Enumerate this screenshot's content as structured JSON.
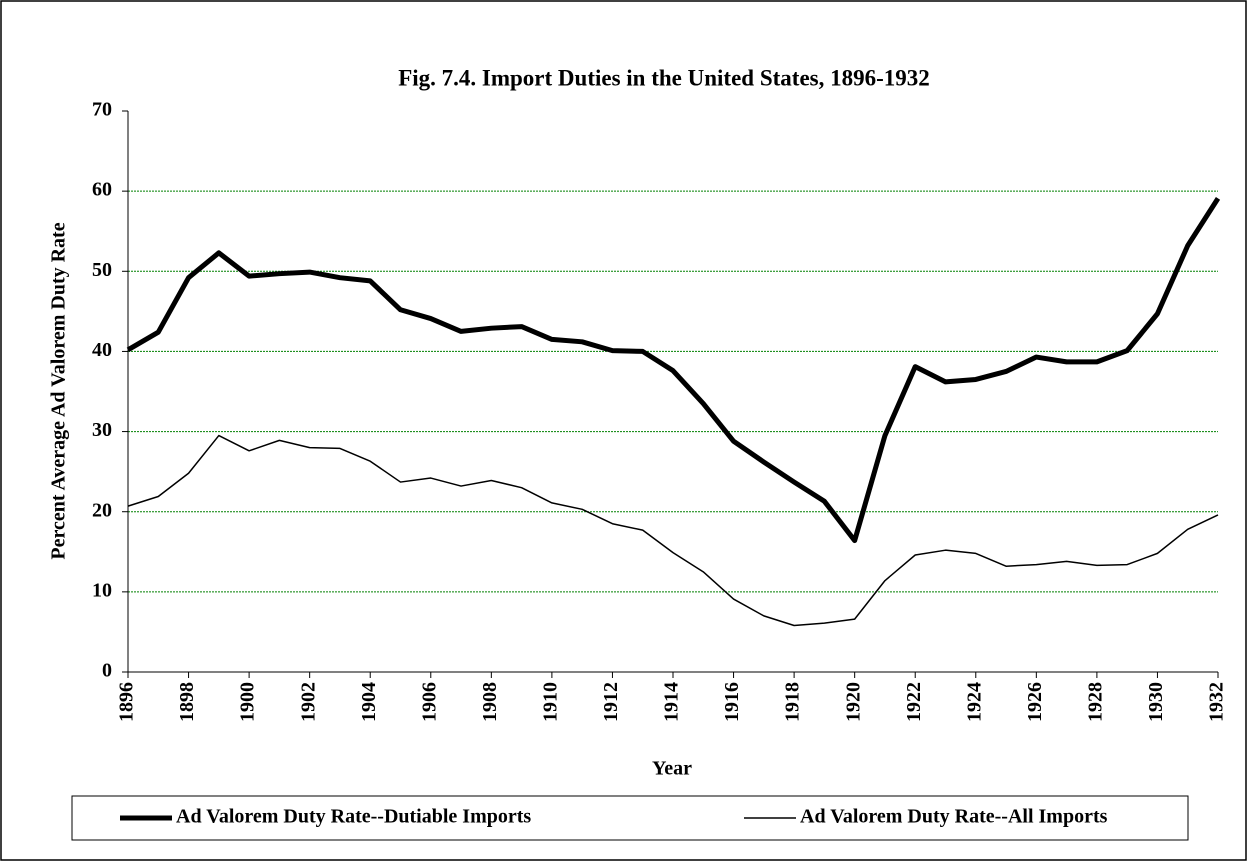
{
  "chart_data": {
    "type": "line",
    "title": "Fig. 7.4. Import Duties in the United States, 1896-1932",
    "x_label": "Year",
    "y_label": "Percent Average Ad Valorem Duty Rate",
    "x": [
      1896,
      1897,
      1898,
      1899,
      1900,
      1901,
      1902,
      1903,
      1904,
      1905,
      1906,
      1907,
      1908,
      1909,
      1910,
      1911,
      1912,
      1913,
      1914,
      1915,
      1916,
      1917,
      1918,
      1919,
      1920,
      1921,
      1922,
      1923,
      1924,
      1925,
      1926,
      1927,
      1928,
      1929,
      1930,
      1931,
      1932
    ],
    "series": [
      {
        "name": "Ad Valorem Duty Rate--Dutiable Imports",
        "color": "#000000",
        "values": [
          40.2,
          42.4,
          49.2,
          52.3,
          49.4,
          49.7,
          49.9,
          49.2,
          48.8,
          45.2,
          44.1,
          42.5,
          42.9,
          43.1,
          41.5,
          41.2,
          40.1,
          40.0,
          37.6,
          33.5,
          28.8,
          26.2,
          23.7,
          21.3,
          16.4,
          29.5,
          38.1,
          36.2,
          36.5,
          37.5,
          39.3,
          38.7,
          38.7,
          40.1,
          44.7,
          53.2,
          59.1
        ]
      },
      {
        "name": "Ad Valorem Duty Rate--All Imports",
        "color": "#000000",
        "values": [
          20.7,
          21.9,
          24.8,
          29.5,
          27.6,
          28.9,
          28.0,
          27.9,
          26.3,
          23.7,
          24.2,
          23.2,
          23.9,
          23.0,
          21.1,
          20.3,
          18.5,
          17.7,
          14.9,
          12.5,
          9.1,
          7.0,
          5.8,
          6.1,
          6.6,
          11.4,
          14.6,
          15.2,
          14.8,
          13.2,
          13.4,
          13.8,
          13.3,
          13.4,
          14.8,
          17.8,
          19.6
        ]
      }
    ],
    "xlim": [
      1896,
      1932
    ],
    "xticks": [
      1896,
      1898,
      1900,
      1902,
      1904,
      1906,
      1908,
      1910,
      1912,
      1914,
      1916,
      1918,
      1920,
      1922,
      1924,
      1926,
      1928,
      1930,
      1932
    ],
    "ylim": [
      0,
      70
    ],
    "yticks": [
      0,
      10,
      20,
      30,
      40,
      50,
      60,
      70
    ],
    "grid": true,
    "grid_color": "#008000",
    "legend": "bottom"
  }
}
